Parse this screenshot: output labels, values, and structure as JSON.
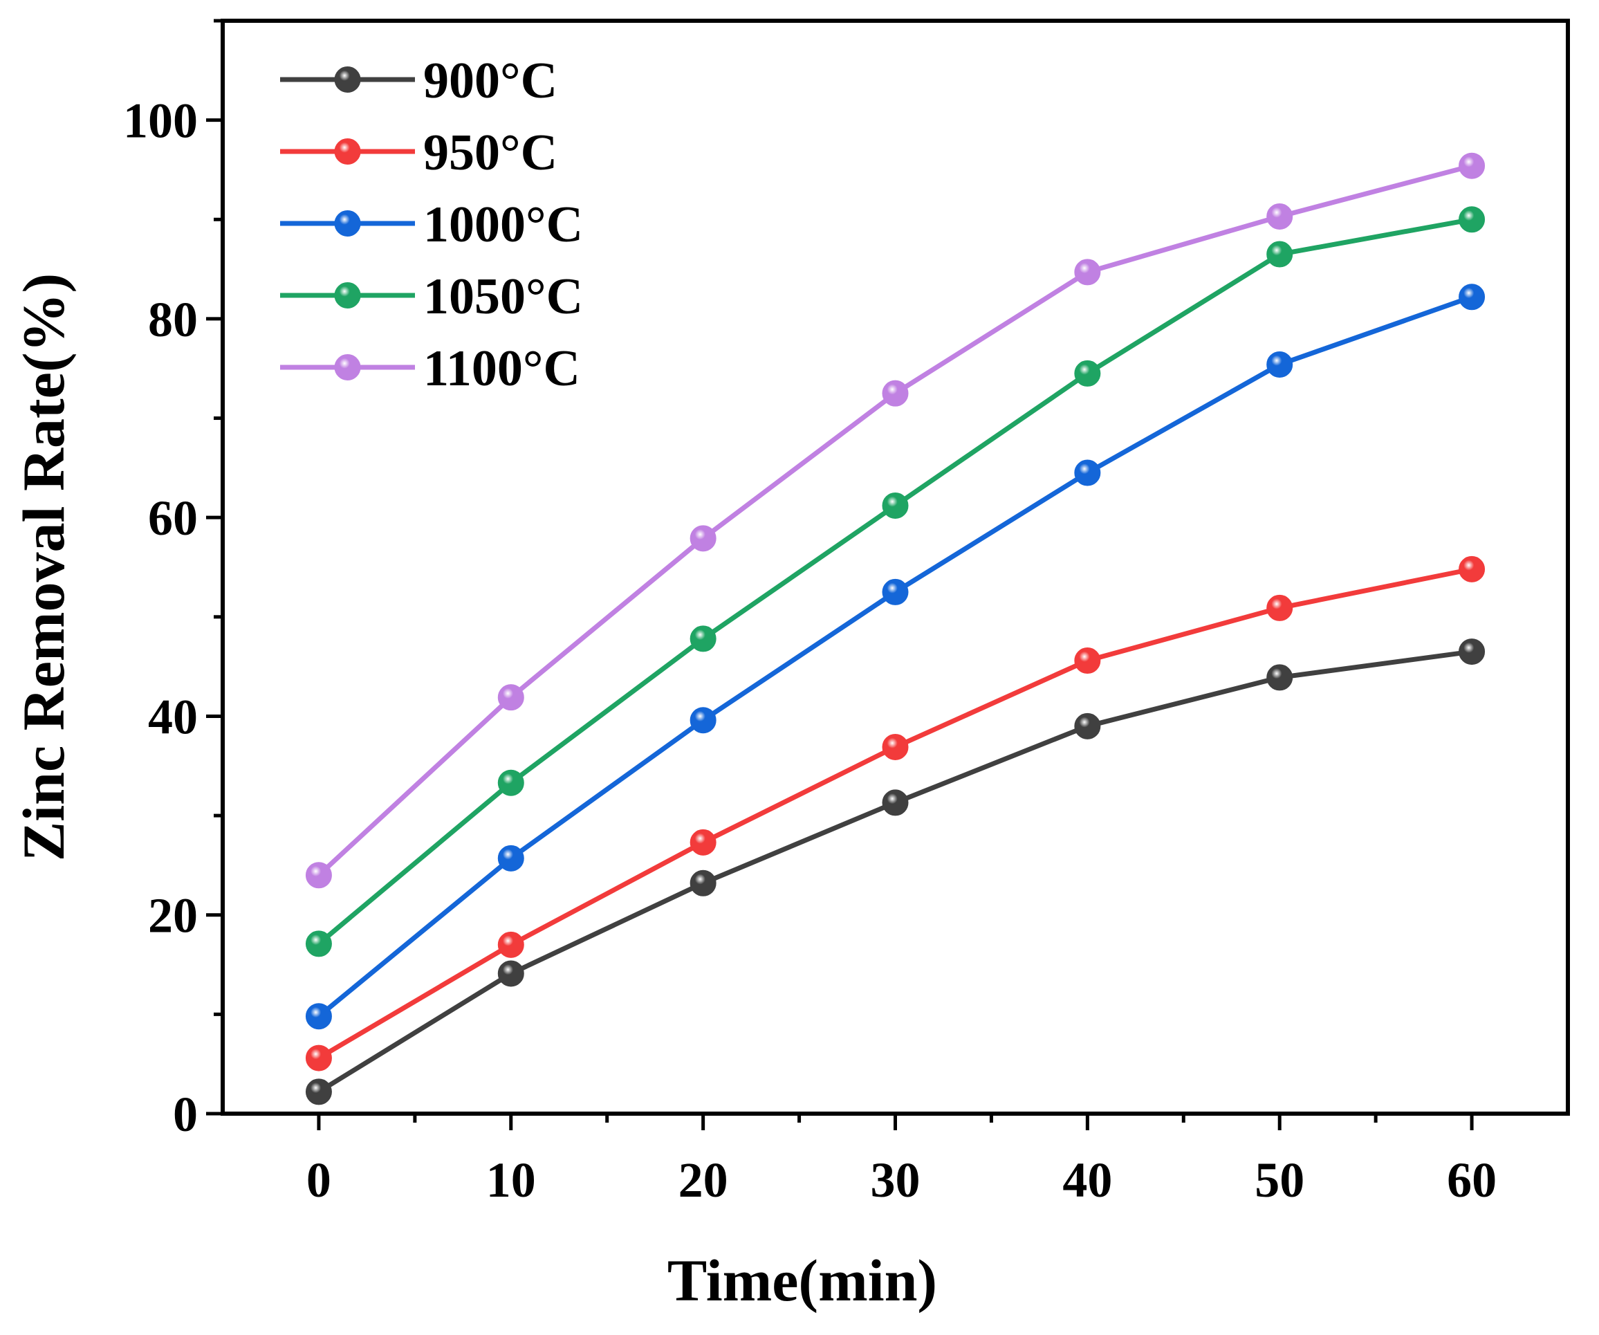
{
  "chart_data": {
    "type": "line",
    "title": "",
    "xlabel": "Time(min)",
    "ylabel": "Zinc Removal Rate(%)",
    "x": [
      0,
      10,
      20,
      30,
      40,
      50,
      60
    ],
    "xlim": [
      -5,
      65
    ],
    "ylim": [
      0,
      110
    ],
    "xticks": [
      0,
      10,
      20,
      30,
      40,
      50,
      60
    ],
    "yticks": [
      0,
      20,
      40,
      60,
      80,
      100
    ],
    "grid": false,
    "legend_position": "top-left",
    "series": [
      {
        "name": "900°C",
        "color": "#404040",
        "values": [
          2.2,
          14.1,
          23.2,
          31.3,
          39.0,
          43.9,
          46.5
        ]
      },
      {
        "name": "950°C",
        "color": "#f23b3b",
        "values": [
          5.6,
          17.0,
          27.3,
          36.9,
          45.6,
          50.9,
          54.8
        ]
      },
      {
        "name": "1000°C",
        "color": "#1466d8",
        "values": [
          9.8,
          25.7,
          39.6,
          52.5,
          64.5,
          75.4,
          82.2
        ]
      },
      {
        "name": "1050°C",
        "color": "#1fa463",
        "values": [
          17.1,
          33.3,
          47.8,
          61.2,
          74.5,
          86.5,
          90.0
        ]
      },
      {
        "name": "1100°C",
        "color": "#c081e2",
        "values": [
          24.0,
          41.9,
          57.9,
          72.5,
          84.7,
          90.3,
          95.4
        ]
      }
    ]
  }
}
